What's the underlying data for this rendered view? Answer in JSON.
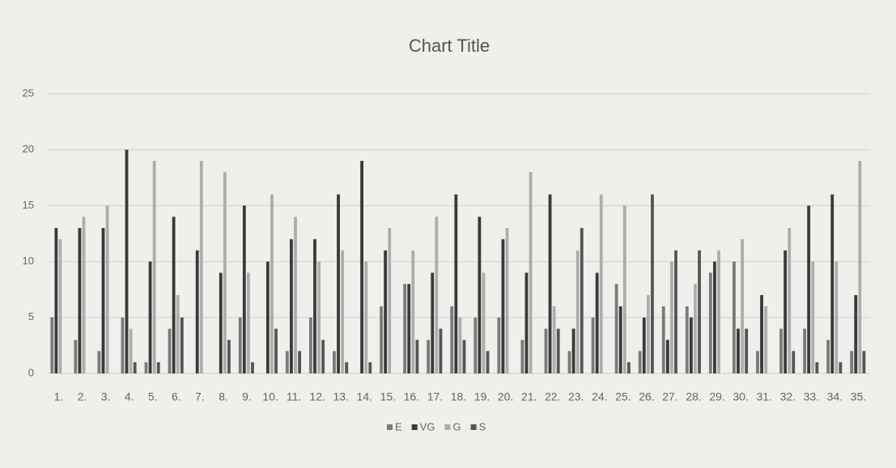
{
  "chart_data": {
    "type": "bar",
    "title": "Chart Title",
    "categories": [
      "1.",
      "2.",
      "3.",
      "4.",
      "5.",
      "6.",
      "7.",
      "8.",
      "9.",
      "10.",
      "11.",
      "12.",
      "13.",
      "14.",
      "15.",
      "16.",
      "17.",
      "18.",
      "19.",
      "20.",
      "21.",
      "22.",
      "23.",
      "24.",
      "25.",
      "26.",
      "27.",
      "28.",
      "29.",
      "30.",
      "31.",
      "32.",
      "33.",
      "34.",
      "35."
    ],
    "series": [
      {
        "name": "E",
        "color": "#7a7a7a",
        "values": [
          5,
          3,
          2,
          5,
          1,
          4,
          0,
          0,
          5,
          0,
          2,
          5,
          2,
          0,
          6,
          8,
          3,
          6,
          5,
          5,
          3,
          4,
          2,
          5,
          8,
          2,
          6,
          6,
          9,
          10,
          2,
          4,
          4,
          3,
          2
        ]
      },
      {
        "name": "VG",
        "color": "#3a3a3a",
        "values": [
          13,
          13,
          13,
          20,
          10,
          14,
          11,
          9,
          15,
          10,
          12,
          12,
          16,
          19,
          11,
          8,
          9,
          16,
          14,
          12,
          9,
          16,
          4,
          9,
          6,
          5,
          3,
          5,
          10,
          4,
          7,
          11,
          15,
          16,
          7
        ]
      },
      {
        "name": "G",
        "color": "#adadad",
        "values": [
          12,
          14,
          15,
          4,
          19,
          7,
          19,
          18,
          9,
          16,
          14,
          10,
          11,
          10,
          13,
          11,
          14,
          5,
          9,
          13,
          18,
          6,
          11,
          16,
          15,
          7,
          10,
          8,
          11,
          12,
          6,
          13,
          10,
          10,
          19
        ]
      },
      {
        "name": "S",
        "color": "#555555",
        "values": [
          0,
          0,
          0,
          1,
          1,
          5,
          0,
          3,
          1,
          4,
          2,
          3,
          1,
          1,
          0,
          3,
          4,
          3,
          2,
          0,
          0,
          4,
          13,
          0,
          1,
          16,
          11,
          11,
          0,
          4,
          0,
          2,
          1,
          1,
          2
        ]
      }
    ],
    "ylim": [
      0,
      25
    ],
    "yticks": [
      0,
      5,
      10,
      15,
      20,
      25
    ],
    "grid": true,
    "legend": "bottom"
  }
}
